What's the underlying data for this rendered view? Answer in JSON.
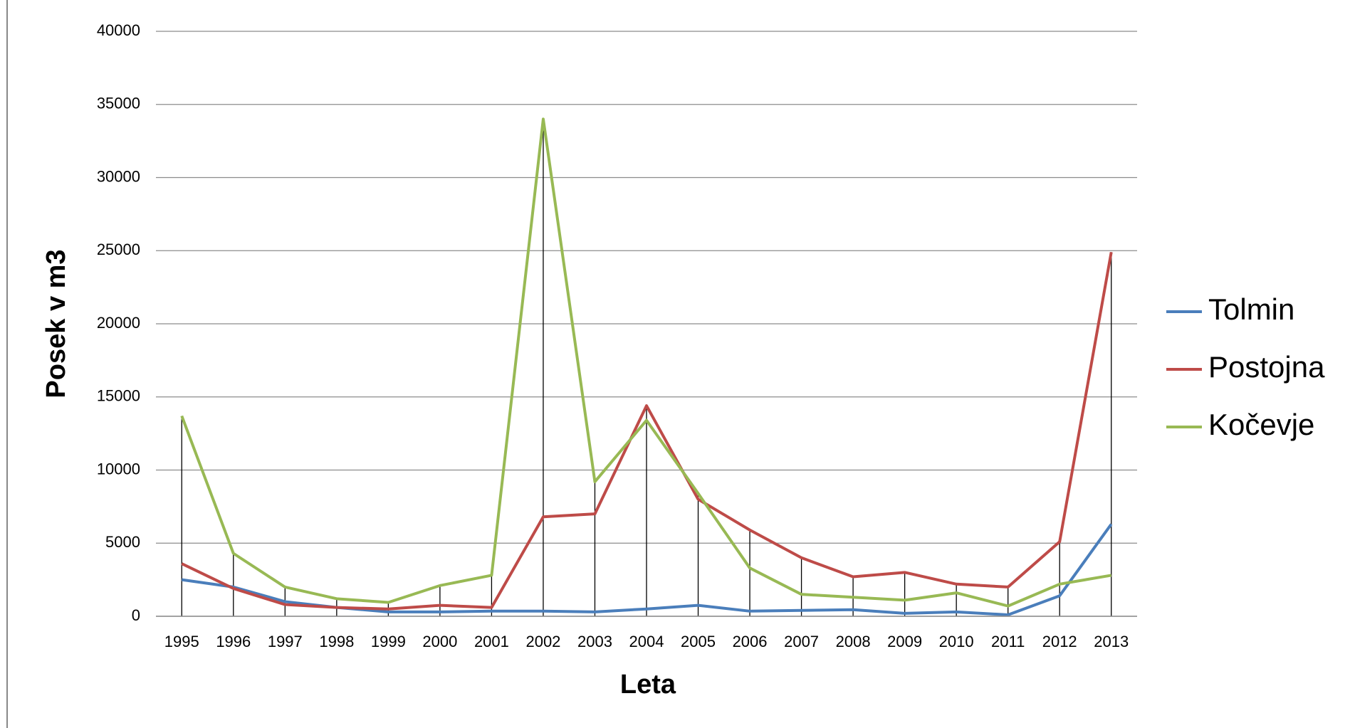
{
  "chart_data": {
    "type": "line",
    "x_label": "Leta",
    "y_label": "Posek v m3",
    "categories": [
      "1995",
      "1996",
      "1997",
      "1998",
      "1999",
      "2000",
      "2001",
      "2002",
      "2003",
      "2004",
      "2005",
      "2006",
      "2007",
      "2008",
      "2009",
      "2010",
      "2011",
      "2012",
      "2013"
    ],
    "series": [
      {
        "name": "Tolmin",
        "color": "#4a7ebb",
        "values": [
          2500,
          2000,
          1000,
          600,
          300,
          300,
          350,
          350,
          300,
          500,
          750,
          350,
          400,
          450,
          200,
          300,
          100,
          1400,
          6300
        ]
      },
      {
        "name": "Postojna",
        "color": "#be4b48",
        "values": [
          3600,
          1900,
          800,
          600,
          500,
          750,
          600,
          6800,
          7000,
          14400,
          8000,
          5900,
          4000,
          2700,
          3000,
          2200,
          2000,
          5100,
          24900
        ]
      },
      {
        "name": "Kočevje",
        "color": "#98b954",
        "values": [
          13700,
          4300,
          2000,
          1200,
          950,
          2100,
          2800,
          34000,
          9200,
          13400,
          8400,
          3300,
          1500,
          1300,
          1100,
          1600,
          700,
          2200,
          2800
        ]
      }
    ],
    "ylim": [
      0,
      40000
    ],
    "yticks": [
      0,
      5000,
      10000,
      15000,
      20000,
      25000,
      30000,
      35000,
      40000
    ],
    "grid": true,
    "legend": "right"
  }
}
